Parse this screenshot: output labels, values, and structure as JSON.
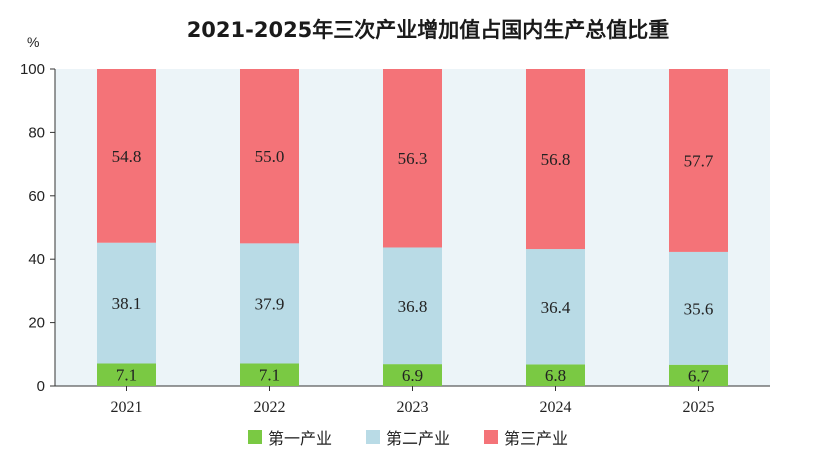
{
  "chart_data": {
    "type": "bar",
    "stacked": true,
    "title": "2021-2025年三次产业增加值占国内生产总值比重",
    "yunit": "%",
    "ylim": [
      0,
      100
    ],
    "yticks": [
      0,
      20,
      40,
      60,
      80,
      100
    ],
    "categories": [
      "2021",
      "2022",
      "2023",
      "2024",
      "2025"
    ],
    "series": [
      {
        "name": "第一产业",
        "color": "#7ac943",
        "values": [
          7.1,
          7.1,
          6.9,
          6.8,
          6.7
        ],
        "labels": [
          "7.1",
          "7.1",
          "6.9",
          "6.8",
          "6.7"
        ]
      },
      {
        "name": "第二产业",
        "color": "#b9dbe6",
        "values": [
          38.1,
          37.9,
          36.8,
          36.4,
          35.6
        ],
        "labels": [
          "38.1",
          "37.9",
          "36.8",
          "36.4",
          "35.6"
        ]
      },
      {
        "name": "第三产业",
        "color": "#f47378",
        "values": [
          54.8,
          55.0,
          56.3,
          56.8,
          57.7
        ],
        "labels": [
          "54.8",
          "55.0",
          "56.3",
          "56.8",
          "57.7"
        ]
      }
    ],
    "legend_position": "bottom",
    "plot_background": "#ecf4f8"
  }
}
